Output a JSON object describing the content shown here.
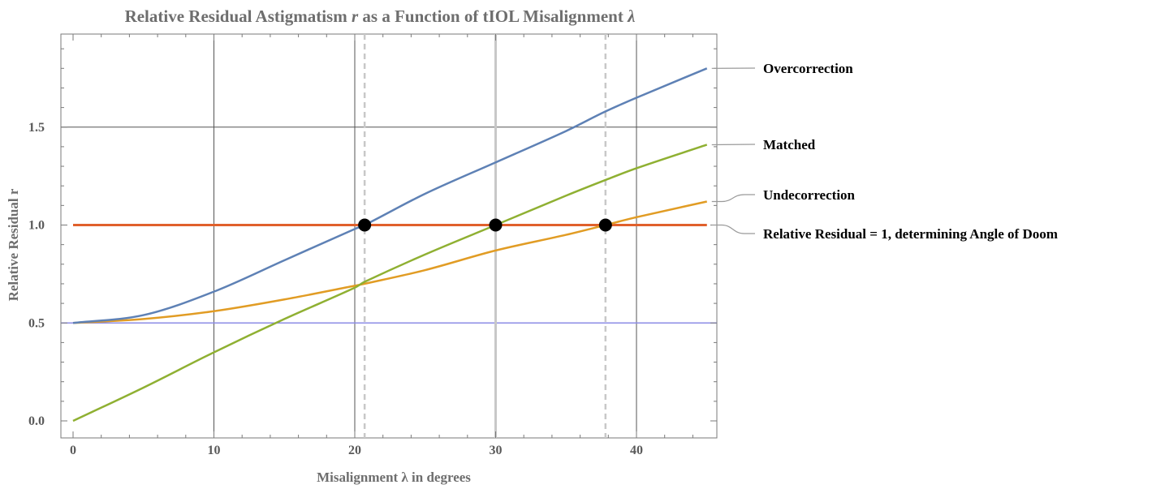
{
  "chart_data": {
    "type": "line",
    "title_parts": [
      "Relative Residual Astigmatism ",
      "r",
      " as a Function of tIOL Misalignment ",
      "λ"
    ],
    "xlabel": "Misalignment λ in degrees",
    "ylabel": "Relative Residual r",
    "xlim": [
      0,
      45
    ],
    "ylim": [
      -0.1,
      1.95
    ],
    "x_ticks": [
      0,
      10,
      20,
      30,
      40
    ],
    "y_ticks": [
      0.0,
      0.5,
      1.0,
      1.5
    ],
    "x_tick_labels": [
      "0",
      "10",
      "20",
      "30",
      "40"
    ],
    "y_tick_labels": [
      "0.0",
      "0.5",
      "1.0",
      "1.5"
    ],
    "x": [
      0,
      5,
      10,
      15,
      20,
      20.7,
      25,
      30,
      35,
      37.8,
      40,
      45
    ],
    "series": [
      {
        "name": "Overcorrection",
        "color": "#5e81b5",
        "values": [
          0.5,
          0.54,
          0.66,
          0.82,
          0.98,
          1.0,
          1.16,
          1.32,
          1.48,
          1.58,
          1.65,
          1.8
        ]
      },
      {
        "name": "Matched",
        "color": "#8fb032",
        "values": [
          0.0,
          0.17,
          0.35,
          0.52,
          0.68,
          0.71,
          0.85,
          1.0,
          1.15,
          1.23,
          1.29,
          1.41
        ]
      },
      {
        "name": "Undecorrection",
        "color": "#e19c24",
        "values": [
          0.5,
          0.52,
          0.56,
          0.62,
          0.69,
          0.7,
          0.77,
          0.87,
          0.95,
          1.0,
          1.04,
          1.12
        ]
      },
      {
        "name": "Relative Residual = 1, determining Angle of Doom",
        "color": "#e0602c",
        "values": [
          1,
          1,
          1,
          1,
          1,
          1,
          1,
          1,
          1,
          1,
          1,
          1
        ]
      }
    ],
    "reference_lines": {
      "horizontal": [
        {
          "y": 0.5,
          "color": "#8c8ce6"
        }
      ],
      "vertical_solid": [
        {
          "x": 30,
          "color": "#c8c8c8"
        }
      ],
      "vertical_dashed": [
        {
          "x": 20.7,
          "color": "#c8c8c8"
        },
        {
          "x": 37.8,
          "color": "#c8c8c8"
        }
      ]
    },
    "intersection_points": [
      {
        "x": 20.7,
        "y": 1.0
      },
      {
        "x": 30,
        "y": 1.0
      },
      {
        "x": 37.8,
        "y": 1.0
      }
    ],
    "grid": true,
    "gridlines_x": [
      10,
      20,
      40
    ],
    "gridlines_y": [
      1.5
    ],
    "legend_placement": "right"
  }
}
